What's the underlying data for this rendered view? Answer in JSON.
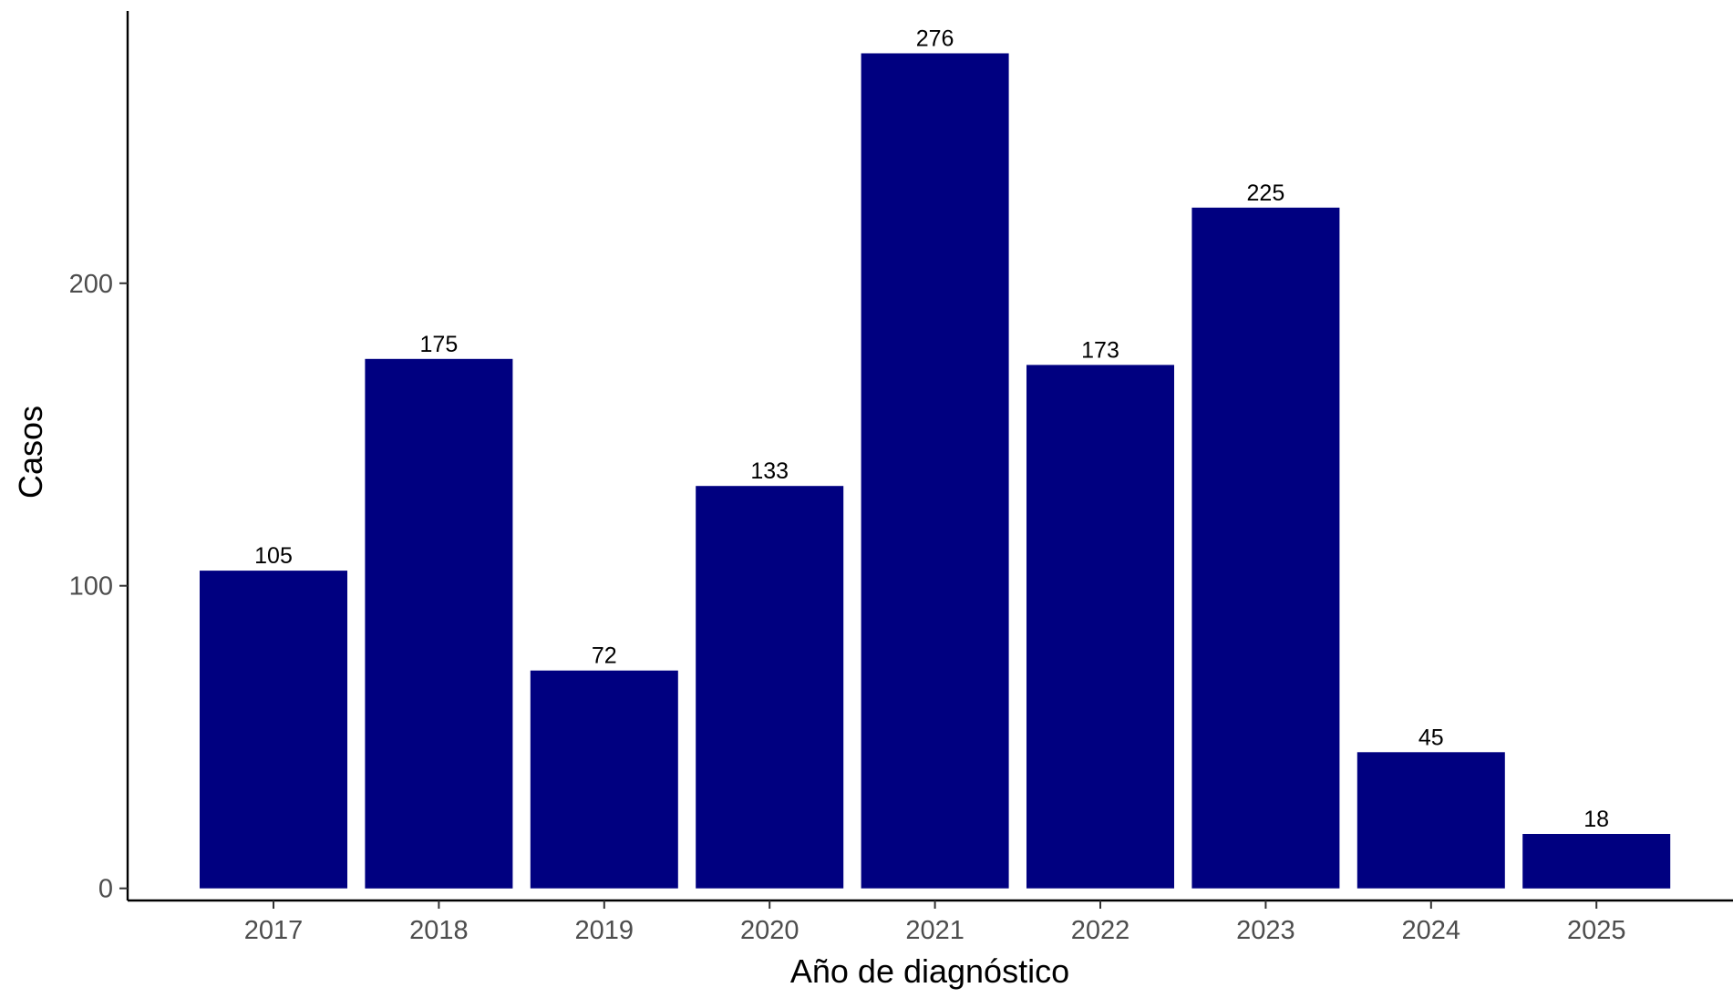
{
  "chart_data": {
    "type": "bar",
    "title": "",
    "xlabel": "Año de diagnóstico",
    "ylabel": "Casos",
    "categories": [
      "2017",
      "2018",
      "2019",
      "2020",
      "2021",
      "2022",
      "2023",
      "2024",
      "2025"
    ],
    "values": [
      105,
      175,
      72,
      133,
      276,
      173,
      225,
      45,
      18
    ],
    "data_labels": [
      "105",
      "175",
      "72",
      "133",
      "276",
      "173",
      "225",
      "45",
      "18"
    ],
    "yticks": [
      0,
      100,
      200
    ],
    "ytick_labels": [
      "0",
      "100",
      "200"
    ],
    "ylim": [
      -4,
      290
    ],
    "grid": false,
    "legend": "none",
    "bar_color": "#000080",
    "axis_color": "#000000",
    "tick_label_color": "#4d4d4d",
    "data_label_color": "#000000"
  }
}
